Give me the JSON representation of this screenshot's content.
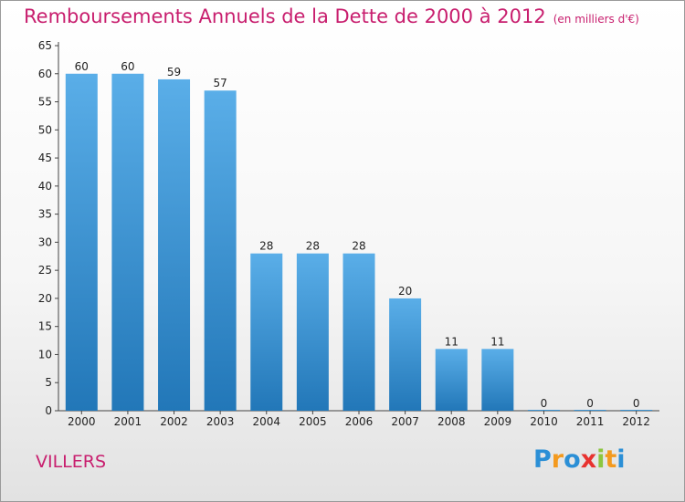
{
  "title": "Remboursements Annuels de la Dette de 2000 à 2012",
  "unit_note": "(en milliers d'€)",
  "town": "VILLERS",
  "logo": {
    "letters": [
      "P",
      "r",
      "o",
      "x",
      "i",
      "t",
      "i"
    ],
    "colors": [
      "#2b8fd6",
      "#f39a1f",
      "#2b8fd6",
      "#e8322f",
      "#8cc63f",
      "#f39a1f",
      "#2b8fd6"
    ]
  },
  "colors": {
    "accent": "#c81e6e",
    "bar_top": "#5aaee8",
    "bar_bottom": "#2277b8"
  },
  "chart_data": {
    "type": "bar",
    "categories": [
      "2000",
      "2001",
      "2002",
      "2003",
      "2004",
      "2005",
      "2006",
      "2007",
      "2008",
      "2009",
      "2010",
      "2011",
      "2012"
    ],
    "values": [
      60,
      60,
      59,
      57,
      28,
      28,
      28,
      20,
      11,
      11,
      0,
      0,
      0
    ],
    "value_labels": [
      "60",
      "60",
      "59",
      "57",
      "28",
      "28",
      "28",
      "20",
      "11",
      "11",
      "0",
      "0",
      "0"
    ],
    "ylim": [
      0,
      65
    ],
    "yticks": [
      0,
      5,
      10,
      15,
      20,
      25,
      30,
      35,
      40,
      45,
      50,
      55,
      60,
      65
    ],
    "grid": false,
    "legend": "none"
  }
}
